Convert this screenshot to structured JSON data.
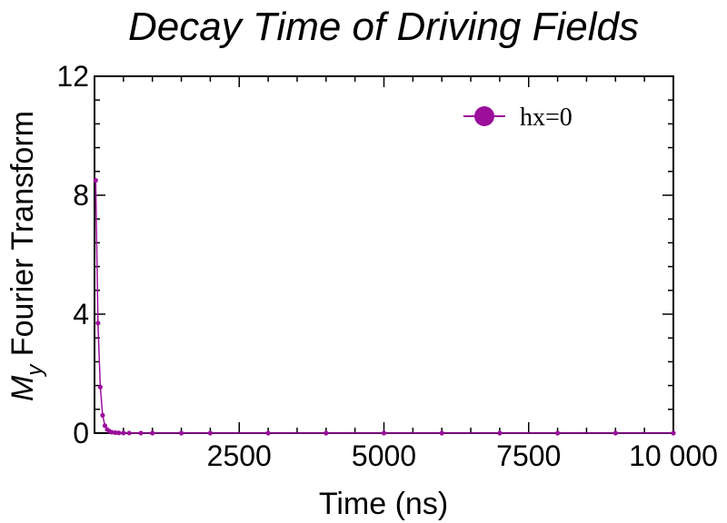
{
  "chart_data": {
    "type": "line",
    "title": "Decay Time of Driving Fields",
    "xlabel": "Time (ns)",
    "ylabel_main": "M",
    "ylabel_sub": "y",
    "ylabel_rest": " Fourier Transform",
    "xlim": [
      0,
      10000
    ],
    "ylim": [
      0,
      12
    ],
    "xticks": [
      2500,
      5000,
      7500,
      10000
    ],
    "xtick_labels": [
      "2500",
      "5000",
      "7500",
      "10 000"
    ],
    "yticks": [
      0,
      4,
      8,
      12
    ],
    "ytick_labels": [
      "0",
      "4",
      "8",
      "12"
    ],
    "grid": false,
    "legend_position": "top-right",
    "series": [
      {
        "name": "hx=0",
        "color": "#9b0f9b",
        "x": [
          20,
          60,
          100,
          140,
          180,
          220,
          260,
          300,
          360,
          420,
          500,
          600,
          800,
          1000,
          1500,
          2000,
          3000,
          4000,
          5000,
          6000,
          7000,
          8000,
          9000,
          10000
        ],
        "y": [
          8.5,
          3.7,
          1.55,
          0.6,
          0.25,
          0.12,
          0.06,
          0.03,
          0.015,
          0.008,
          0.004,
          0.002,
          0.001,
          0.0,
          0.0,
          0.0,
          0.0,
          0.0,
          0.0,
          0.0,
          0.0,
          0.0,
          0.0,
          0.0
        ]
      }
    ]
  }
}
